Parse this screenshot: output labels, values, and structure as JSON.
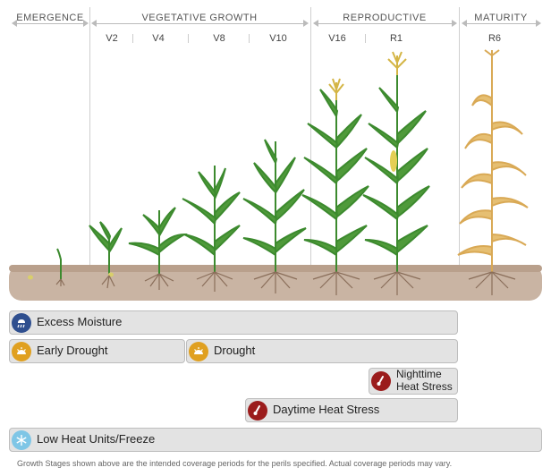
{
  "stages": {
    "emergence": "EMERGENCE",
    "vegetative": "VEGETATIVE GROWTH",
    "reproductive": "REPRODUCTIVE",
    "maturity": "MATURITY"
  },
  "substages": [
    "V2",
    "V4",
    "V8",
    "V10",
    "V16",
    "R1",
    "R6"
  ],
  "perils": {
    "excess_moisture": "Excess Moisture",
    "early_drought": "Early Drought",
    "drought": "Drought",
    "nighttime_heat_1": "Nighttime",
    "nighttime_heat_2": "Heat Stress",
    "daytime_heat": "Daytime Heat Stress",
    "low_heat": "Low Heat Units/Freeze"
  },
  "icon_colors": {
    "moisture": "#2f4f8f",
    "drought": "#e0a020",
    "heat": "#9b1c1c",
    "freeze": "#7fc6e6"
  },
  "footer": "Growth Stages shown above are the intended coverage periods for the perils specified. Actual coverage periods may vary."
}
